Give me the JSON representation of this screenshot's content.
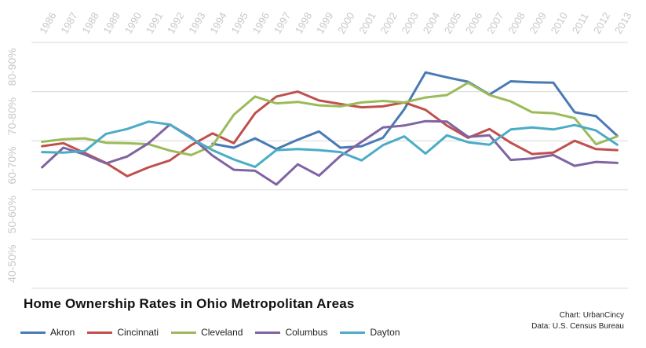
{
  "chart_data": {
    "type": "line",
    "title": "Home Ownership Rates in Ohio Metropolitan Areas",
    "xlabel": "",
    "ylabel": "",
    "x": [
      "1986",
      "1987",
      "1988",
      "1989",
      "1990",
      "1991",
      "1992",
      "1993",
      "1994",
      "1995",
      "1996",
      "1997",
      "1998",
      "1999",
      "2000",
      "2001",
      "2002",
      "2003",
      "2004",
      "2005",
      "2006",
      "2007",
      "2008",
      "2009",
      "2010",
      "2011",
      "2012",
      "2013"
    ],
    "y_ticks": [
      "40-50%",
      "50-60%",
      "60-70%",
      "70-80%",
      "80-90%"
    ],
    "ylim": [
      40,
      90
    ],
    "grid": true,
    "legend": "bottom",
    "series": [
      {
        "name": "Akron",
        "color": "#4a7ab5",
        "values": [
          null,
          null,
          null,
          null,
          null,
          null,
          null,
          null,
          null,
          null,
          null,
          null,
          null,
          null,
          null,
          null,
          null,
          null,
          null,
          null,
          null,
          null,
          null,
          null,
          null,
          null,
          null,
          null
        ]
      },
      {
        "name": "Cincinnati",
        "color": "#c0504d",
        "values": [
          68.9,
          69.5,
          67.5,
          65.5,
          62.8,
          64.6,
          66.0,
          69.1,
          71.5,
          69.5,
          75.6,
          79.0,
          80.0,
          78.2,
          77.5,
          76.8,
          77.0,
          77.8,
          76.3,
          73.1,
          70.6,
          72.4,
          69.6,
          67.3,
          67.6,
          70.0,
          68.3,
          68.1
        ]
      },
      {
        "name": "Cleveland",
        "color": "#9bbb59",
        "values": [
          69.8,
          70.3,
          70.5,
          69.6,
          69.5,
          69.3,
          68.0,
          67.1,
          69.0,
          75.3,
          79.0,
          77.6,
          77.9,
          77.2,
          77.0,
          77.8,
          78.1,
          77.8,
          78.8,
          79.3,
          81.8,
          79.3,
          78.0,
          75.8,
          75.6,
          74.6,
          69.3,
          70.9
        ]
      },
      {
        "name": "Columbus",
        "color": "#8064a2",
        "values": [
          64.6,
          68.6,
          67.2,
          65.4,
          66.8,
          69.5,
          73.3,
          70.7,
          67.0,
          64.1,
          63.9,
          61.1,
          65.2,
          62.9,
          66.9,
          69.8,
          72.7,
          73.1,
          74.0,
          73.9,
          70.8,
          71.1,
          66.1,
          66.4,
          67.1,
          64.9,
          65.7,
          65.5
        ]
      },
      {
        "name": "Dayton",
        "color": "#4bacc6",
        "values": [
          67.7,
          67.6,
          67.9,
          71.4,
          72.4,
          73.9,
          73.3,
          70.5,
          68.1,
          66.2,
          64.7,
          68.1,
          68.3,
          68.1,
          67.7,
          66.0,
          69.1,
          70.9,
          67.4,
          71.1,
          69.7,
          69.2,
          72.3,
          72.7,
          72.3,
          73.2,
          72.1,
          69.2
        ]
      }
    ]
  },
  "credits": {
    "chart_line": "Chart: UrbanCincy",
    "data_line": "Data: U.S. Census Bureau"
  }
}
